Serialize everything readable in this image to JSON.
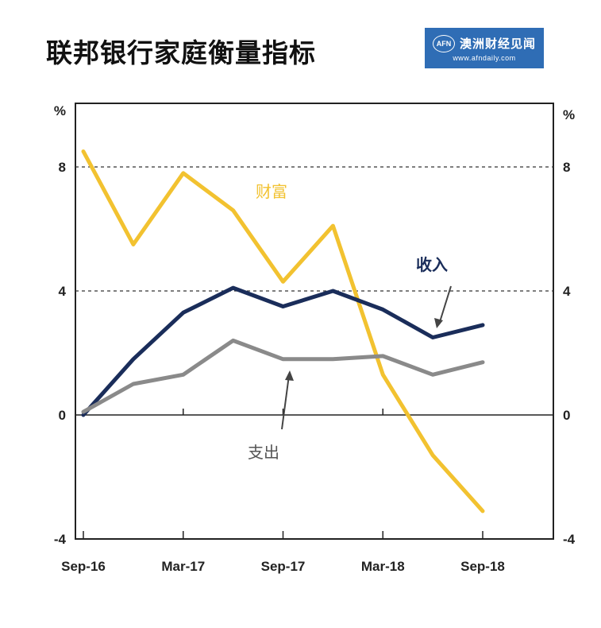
{
  "header": {
    "title": "联邦银行家庭衡量指标",
    "logo_name": "澳洲财经见闻",
    "logo_badge": "AFN",
    "logo_url": "www.afndaily.com"
  },
  "chart_data": {
    "type": "line",
    "title": "联邦银行家庭衡量指标",
    "y_unit_left": "%",
    "y_unit_right": "%",
    "ylim": [
      -4,
      10
    ],
    "yticks": [
      8,
      4,
      0,
      -4
    ],
    "reference_lines": [
      8,
      4
    ],
    "x_tick_labels": [
      "Sep-16",
      "Mar-17",
      "Sep-17",
      "Mar-18",
      "Sep-18"
    ],
    "x_tick_index": [
      0,
      6,
      12,
      18,
      24
    ],
    "x_count": 25,
    "grid": false,
    "series": [
      {
        "name": "财富",
        "color": "#f2c230",
        "points": [
          [
            0,
            8.5
          ],
          [
            3,
            5.5
          ],
          [
            6,
            7.8
          ],
          [
            9,
            6.6
          ],
          [
            12,
            4.3
          ],
          [
            15,
            6.1
          ],
          [
            18,
            1.3
          ],
          [
            21,
            -1.3
          ],
          [
            24,
            -3.1
          ]
        ]
      },
      {
        "name": "收入",
        "color": "#1a2d5a",
        "points": [
          [
            0,
            0.0
          ],
          [
            3,
            1.8
          ],
          [
            6,
            3.3
          ],
          [
            9,
            4.1
          ],
          [
            12,
            3.5
          ],
          [
            15,
            4.0
          ],
          [
            18,
            3.4
          ],
          [
            21,
            2.5
          ],
          [
            24,
            2.9
          ]
        ]
      },
      {
        "name": "支出",
        "color": "#8a8a8a",
        "points": [
          [
            0,
            0.1
          ],
          [
            3,
            1.0
          ],
          [
            6,
            1.3
          ],
          [
            9,
            2.4
          ],
          [
            12,
            1.8
          ],
          [
            15,
            1.8
          ],
          [
            18,
            1.9
          ],
          [
            21,
            1.3
          ],
          [
            24,
            1.7
          ]
        ]
      }
    ]
  }
}
